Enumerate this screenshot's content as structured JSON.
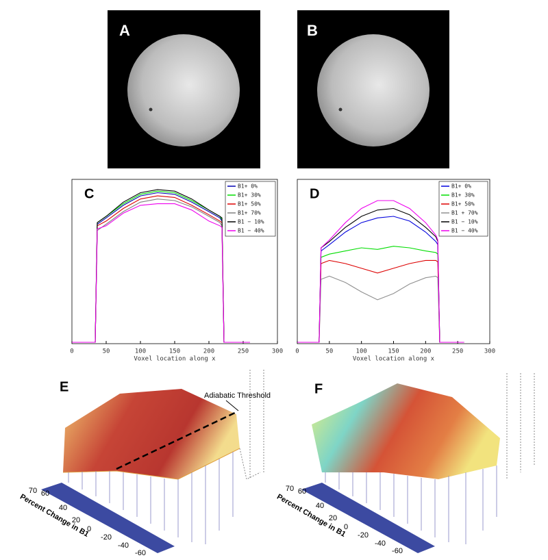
{
  "images": [
    {
      "label": "A"
    },
    {
      "label": "B"
    }
  ],
  "chart_data": [
    {
      "type": "line",
      "panel_label": "C",
      "x_label": "Voxel location along x",
      "xlim": [
        0,
        300
      ],
      "xticks": [
        0,
        50,
        100,
        150,
        200,
        250,
        300
      ],
      "ylim": [
        0,
        1
      ],
      "x": [
        0,
        34,
        37,
        50,
        75,
        100,
        125,
        150,
        175,
        200,
        216,
        219,
        222,
        260
      ],
      "series": [
        {
          "name": "B1+ 0%",
          "color": "#0000b0",
          "values": [
            0,
            0,
            0.75,
            0.79,
            0.87,
            0.93,
            0.95,
            0.94,
            0.89,
            0.83,
            0.79,
            0.77,
            0,
            0
          ]
        },
        {
          "name": "B1+ 30%",
          "color": "#00dd00",
          "values": [
            0,
            0,
            0.76,
            0.8,
            0.88,
            0.94,
            0.96,
            0.95,
            0.9,
            0.84,
            0.8,
            0.78,
            0,
            0
          ]
        },
        {
          "name": "B1+ 50%",
          "color": "#dd0000",
          "values": [
            0,
            0,
            0.74,
            0.77,
            0.85,
            0.91,
            0.93,
            0.92,
            0.87,
            0.81,
            0.77,
            0.76,
            0,
            0
          ]
        },
        {
          "name": "B1+ 70%",
          "color": "#808080",
          "values": [
            0,
            0,
            0.71,
            0.75,
            0.83,
            0.89,
            0.91,
            0.9,
            0.86,
            0.8,
            0.76,
            0.74,
            0,
            0
          ]
        },
        {
          "name": "B1 − 10%",
          "color": "#000000",
          "values": [
            0,
            0,
            0.76,
            0.8,
            0.89,
            0.95,
            0.97,
            0.96,
            0.91,
            0.84,
            0.8,
            0.79,
            0,
            0
          ]
        },
        {
          "name": "B1 − 40%",
          "color": "#ee00ee",
          "values": [
            0,
            0,
            0.72,
            0.74,
            0.82,
            0.87,
            0.88,
            0.88,
            0.84,
            0.77,
            0.74,
            0.73,
            0,
            0
          ]
        }
      ]
    },
    {
      "type": "line",
      "panel_label": "D",
      "x_label": "Voxel location along x",
      "xlim": [
        0,
        300
      ],
      "xticks": [
        0,
        50,
        100,
        150,
        200,
        250,
        300
      ],
      "ylim": [
        0,
        1
      ],
      "x": [
        0,
        34,
        37,
        50,
        75,
        100,
        125,
        150,
        175,
        200,
        216,
        219,
        222,
        260
      ],
      "series": [
        {
          "name": "B1+ 0%",
          "color": "#0000dd",
          "values": [
            0,
            0,
            0.58,
            0.62,
            0.7,
            0.76,
            0.79,
            0.8,
            0.77,
            0.7,
            0.64,
            0.62,
            0,
            0
          ]
        },
        {
          "name": "B1+ 30%",
          "color": "#00dd00",
          "values": [
            0,
            0,
            0.54,
            0.56,
            0.58,
            0.6,
            0.59,
            0.61,
            0.6,
            0.58,
            0.57,
            0.56,
            0,
            0
          ]
        },
        {
          "name": "B1+ 50%",
          "color": "#dd0000",
          "values": [
            0,
            0,
            0.5,
            0.52,
            0.5,
            0.47,
            0.44,
            0.47,
            0.5,
            0.52,
            0.52,
            0.51,
            0,
            0
          ]
        },
        {
          "name": "B1 + 70%",
          "color": "#909090",
          "values": [
            0,
            0,
            0.4,
            0.42,
            0.38,
            0.32,
            0.27,
            0.31,
            0.37,
            0.41,
            0.42,
            0.41,
            0,
            0
          ]
        },
        {
          "name": "B1 − 10%",
          "color": "#000000",
          "values": [
            0,
            0,
            0.6,
            0.64,
            0.73,
            0.8,
            0.84,
            0.85,
            0.81,
            0.73,
            0.67,
            0.64,
            0,
            0
          ]
        },
        {
          "name": "B1 − 40%",
          "color": "#ee00ee",
          "values": [
            0,
            0,
            0.6,
            0.65,
            0.76,
            0.85,
            0.9,
            0.9,
            0.85,
            0.76,
            0.68,
            0.65,
            0,
            0
          ]
        }
      ]
    }
  ],
  "surface_plots": [
    {
      "label": "E",
      "axis_label": "Percent Change in B1",
      "ticks": [
        70,
        60,
        40,
        20,
        0,
        -20,
        -40,
        -60
      ],
      "annotation": "Adiabatic Threshold"
    },
    {
      "label": "F",
      "axis_label": "Percent Change in B1",
      "ticks": [
        70,
        60,
        40,
        20,
        0,
        -20,
        -40,
        -60
      ]
    }
  ]
}
